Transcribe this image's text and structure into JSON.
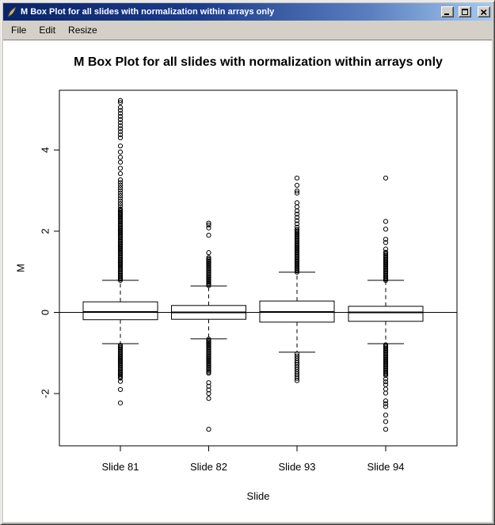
{
  "window": {
    "title": "M Box Plot for all slides with normalization within arrays only"
  },
  "icons": {
    "window": "feather-quill",
    "minimize": "minimize-underscore",
    "maximize": "maximize-square",
    "close": "close-x"
  },
  "menu": {
    "items": [
      {
        "label": "File"
      },
      {
        "label": "Edit"
      },
      {
        "label": "Resize"
      }
    ]
  },
  "chart_data": {
    "type": "boxplot",
    "title": "M Box Plot for all slides with normalization within arrays only",
    "xlabel": "Slide",
    "ylabel": "M",
    "ylim": [
      -3.3,
      5.47
    ],
    "yticks": [
      -2,
      0,
      2,
      4
    ],
    "reference_line_y": 0,
    "grid": false,
    "categories": [
      "Slide 81",
      "Slide 82",
      "Slide 93",
      "Slide 94"
    ],
    "boxes": [
      {
        "label": "Slide 81",
        "lower_whisker": -0.77,
        "q1": -0.18,
        "median": 0.01,
        "q3": 0.26,
        "upper_whisker": 0.79,
        "outlier_runs_upper": [
          [
            0.79,
            2.55,
            0.03
          ],
          [
            2.55,
            3.3,
            0.065
          ],
          [
            4.3,
            5.1,
            0.075
          ]
        ],
        "outlier_points_upper": [
          3.42,
          3.55,
          3.7,
          3.82,
          3.95,
          4.1,
          5.17,
          5.22
        ],
        "outlier_runs_lower": [
          [
            -1.62,
            -0.79,
            0.03
          ]
        ],
        "outlier_points_lower": [
          -1.7,
          -1.9,
          -2.23
        ]
      },
      {
        "label": "Slide 82",
        "lower_whisker": -0.65,
        "q1": -0.17,
        "median": 0.0,
        "q3": 0.17,
        "upper_whisker": 0.65,
        "outlier_runs_upper": [
          [
            0.66,
            1.35,
            0.03
          ]
        ],
        "outlier_points_upper": [
          1.47,
          1.9,
          2.08,
          2.15,
          2.2
        ],
        "outlier_runs_lower": [
          [
            -1.5,
            -0.66,
            0.03
          ],
          [
            -2.0,
            -1.72,
            0.09
          ]
        ],
        "outlier_points_lower": [
          -2.12,
          -2.88
        ]
      },
      {
        "label": "Slide 93",
        "lower_whisker": -0.98,
        "q1": -0.24,
        "median": 0.01,
        "q3": 0.28,
        "upper_whisker": 0.99,
        "outlier_runs_upper": [
          [
            0.99,
            2.05,
            0.03
          ],
          [
            2.1,
            2.45,
            0.08
          ],
          [
            2.5,
            2.72,
            0.1
          ]
        ],
        "outlier_points_upper": [
          2.94,
          2.99,
          3.13,
          3.31
        ],
        "outlier_runs_lower": [
          [
            -1.68,
            -1.02,
            0.055
          ]
        ],
        "outlier_points_lower": []
      },
      {
        "label": "Slide 94",
        "lower_whisker": -0.77,
        "q1": -0.22,
        "median": 0.0,
        "q3": 0.15,
        "upper_whisker": 0.79,
        "outlier_runs_upper": [
          [
            0.79,
            1.5,
            0.03
          ]
        ],
        "outlier_points_upper": [
          1.56,
          1.72,
          1.8,
          2.05,
          2.24,
          3.31
        ],
        "outlier_runs_lower": [
          [
            -1.55,
            -0.79,
            0.03
          ],
          [
            -1.78,
            -1.58,
            0.07
          ]
        ],
        "outlier_points_lower": [
          -1.89,
          -1.99,
          -2.18,
          -2.25,
          -2.32,
          -2.53,
          -2.69,
          -2.88
        ]
      }
    ],
    "colors": {
      "stroke": "#000000",
      "box_fill": "#ffffff",
      "background": "#ffffff"
    }
  }
}
